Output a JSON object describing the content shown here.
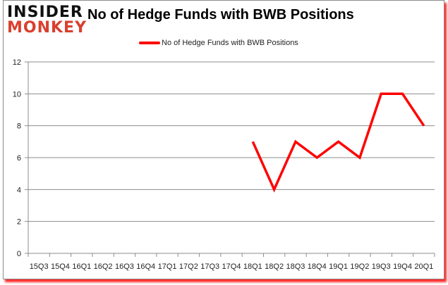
{
  "header": {
    "logo_line1": "INSIDER",
    "logo_line2": "MONKEY",
    "title": "No of Hedge Funds with BWB Positions"
  },
  "legend": {
    "label": "No of Hedge Funds with BWB Positions",
    "color": "#ff0000"
  },
  "chart_data": {
    "type": "line",
    "title": "No of Hedge Funds with BWB Positions",
    "xlabel": "",
    "ylabel": "",
    "ylim": [
      0,
      12
    ],
    "yticks": [
      0,
      2,
      4,
      6,
      8,
      10,
      12
    ],
    "grid": true,
    "legend_position": "top",
    "categories": [
      "15Q3",
      "15Q4",
      "16Q1",
      "16Q2",
      "16Q3",
      "16Q4",
      "17Q1",
      "17Q2",
      "17Q3",
      "17Q4",
      "18Q1",
      "18Q2",
      "18Q3",
      "18Q4",
      "19Q1",
      "19Q2",
      "19Q3",
      "19Q4",
      "20Q1"
    ],
    "series": [
      {
        "name": "No of Hedge Funds with BWB Positions",
        "color": "#ff0000",
        "values": [
          null,
          null,
          null,
          null,
          null,
          null,
          null,
          null,
          null,
          null,
          7,
          4,
          7,
          6,
          7,
          6,
          10,
          10,
          8
        ]
      }
    ]
  }
}
